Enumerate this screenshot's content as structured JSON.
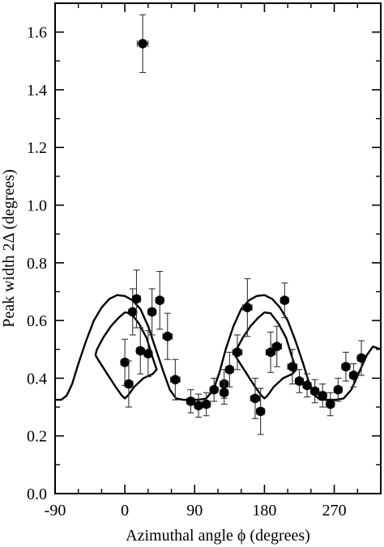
{
  "chart_data": {
    "type": "scatter",
    "xlabel": "Azimuthal angle ϕ (degrees)",
    "ylabel": "Peak width 2Δ (degrees)",
    "xlim": [
      -90,
      330
    ],
    "ylim": [
      0.0,
      1.7
    ],
    "x_ticks": [
      -90,
      0,
      90,
      180,
      270
    ],
    "x_tick_labels": [
      "-90",
      "0",
      "90",
      "180",
      "270"
    ],
    "y_ticks": [
      0.0,
      0.2,
      0.4,
      0.6,
      0.8,
      1.0,
      1.2,
      1.4,
      1.6
    ],
    "y_tick_labels": [
      "0.0",
      "0.2",
      "0.4",
      "0.6",
      "0.8",
      "1.0",
      "1.2",
      "1.4",
      "1.6"
    ],
    "grid": false,
    "series": [
      {
        "marker": "filled-circle",
        "color": "#000000",
        "points": [
          {
            "x": 0,
            "y": 0.455,
            "xerr": 5,
            "yerr": 0.08
          },
          {
            "x": 5,
            "y": 0.38,
            "xerr": 5,
            "yerr": 0.08
          },
          {
            "x": 10,
            "y": 0.63,
            "xerr": 5,
            "yerr": 0.08
          },
          {
            "x": 15,
            "y": 0.675,
            "xerr": 5,
            "yerr": 0.1
          },
          {
            "x": 20,
            "y": 0.495,
            "xerr": 5,
            "yerr": 0.08
          },
          {
            "x": 23,
            "y": 1.56,
            "xerr": 7,
            "yerr": 0.1
          },
          {
            "x": 30,
            "y": 0.485,
            "xerr": 5,
            "yerr": 0.08
          },
          {
            "x": 35,
            "y": 0.63,
            "xerr": 5,
            "yerr": 0.08
          },
          {
            "x": 45,
            "y": 0.67,
            "xerr": 5,
            "yerr": 0.1
          },
          {
            "x": 55,
            "y": 0.545,
            "xerr": 6,
            "yerr": 0.08
          },
          {
            "x": 65,
            "y": 0.395,
            "xerr": 6,
            "yerr": 0.07
          },
          {
            "x": 85,
            "y": 0.32,
            "xerr": 5,
            "yerr": 0.04
          },
          {
            "x": 95,
            "y": 0.305,
            "xerr": 5,
            "yerr": 0.04
          },
          {
            "x": 105,
            "y": 0.31,
            "xerr": 5,
            "yerr": 0.04
          },
          {
            "x": 115,
            "y": 0.36,
            "xerr": 5,
            "yerr": 0.04
          },
          {
            "x": 128,
            "y": 0.38,
            "xerr": 5,
            "yerr": 0.05
          },
          {
            "x": 128,
            "y": 0.35,
            "xerr": 5,
            "yerr": 0.04
          },
          {
            "x": 135,
            "y": 0.43,
            "xerr": 5,
            "yerr": 0.06
          },
          {
            "x": 145,
            "y": 0.49,
            "xerr": 6,
            "yerr": 0.06
          },
          {
            "x": 158,
            "y": 0.645,
            "xerr": 6,
            "yerr": 0.1
          },
          {
            "x": 168,
            "y": 0.33,
            "xerr": 6,
            "yerr": 0.07
          },
          {
            "x": 175,
            "y": 0.285,
            "xerr": 5,
            "yerr": 0.08
          },
          {
            "x": 188,
            "y": 0.49,
            "xerr": 6,
            "yerr": 0.07
          },
          {
            "x": 196,
            "y": 0.51,
            "xerr": 6,
            "yerr": 0.07
          },
          {
            "x": 206,
            "y": 0.67,
            "xerr": 5,
            "yerr": 0.06
          },
          {
            "x": 216,
            "y": 0.44,
            "xerr": 6,
            "yerr": 0.06
          },
          {
            "x": 225,
            "y": 0.39,
            "xerr": 5,
            "yerr": 0.04
          },
          {
            "x": 235,
            "y": 0.375,
            "xerr": 5,
            "yerr": 0.04
          },
          {
            "x": 245,
            "y": 0.355,
            "xerr": 5,
            "yerr": 0.04
          },
          {
            "x": 255,
            "y": 0.34,
            "xerr": 5,
            "yerr": 0.04
          },
          {
            "x": 265,
            "y": 0.31,
            "xerr": 5,
            "yerr": 0.04
          },
          {
            "x": 275,
            "y": 0.36,
            "xerr": 5,
            "yerr": 0.04
          },
          {
            "x": 285,
            "y": 0.44,
            "xerr": 5,
            "yerr": 0.05
          },
          {
            "x": 295,
            "y": 0.41,
            "xerr": 5,
            "yerr": 0.04
          },
          {
            "x": 305,
            "y": 0.47,
            "xerr": 5,
            "yerr": 0.06
          }
        ]
      }
    ],
    "curves": [
      {
        "style": "solid",
        "color": "#000000",
        "points": [
          [
            -90,
            0.325
          ],
          [
            -82,
            0.325
          ],
          [
            -75,
            0.34
          ],
          [
            -68,
            0.38
          ],
          [
            -60,
            0.45
          ],
          [
            -50,
            0.53
          ],
          [
            -40,
            0.6
          ],
          [
            -30,
            0.645
          ],
          [
            -20,
            0.675
          ],
          [
            -10,
            0.688
          ],
          [
            0,
            0.685
          ],
          [
            10,
            0.67
          ],
          [
            20,
            0.64
          ],
          [
            30,
            0.58
          ],
          [
            40,
            0.5
          ],
          [
            50,
            0.42
          ],
          [
            58,
            0.36
          ],
          [
            66,
            0.33
          ],
          [
            75,
            0.325
          ],
          [
            85,
            0.325
          ],
          [
            95,
            0.325
          ],
          [
            105,
            0.33
          ],
          [
            114,
            0.36
          ],
          [
            122,
            0.42
          ],
          [
            130,
            0.5
          ],
          [
            140,
            0.58
          ],
          [
            150,
            0.64
          ],
          [
            160,
            0.67
          ],
          [
            170,
            0.685
          ],
          [
            180,
            0.688
          ],
          [
            190,
            0.675
          ],
          [
            200,
            0.645
          ],
          [
            210,
            0.6
          ],
          [
            220,
            0.53
          ],
          [
            230,
            0.45
          ],
          [
            238,
            0.38
          ],
          [
            245,
            0.34
          ],
          [
            252,
            0.325
          ],
          [
            262,
            0.325
          ],
          [
            272,
            0.325
          ],
          [
            282,
            0.33
          ],
          [
            292,
            0.36
          ],
          [
            302,
            0.42
          ],
          [
            312,
            0.48
          ],
          [
            320,
            0.51
          ],
          [
            330,
            0.5
          ]
        ]
      },
      {
        "style": "solid",
        "color": "#000000",
        "points": [
          [
            -38,
            0.48
          ],
          [
            -36,
            0.5
          ],
          [
            -28,
            0.54
          ],
          [
            -18,
            0.58
          ],
          [
            -8,
            0.61
          ],
          [
            0,
            0.628
          ],
          [
            8,
            0.625
          ],
          [
            18,
            0.59
          ],
          [
            28,
            0.54
          ],
          [
            36,
            0.47
          ],
          [
            41,
            0.43
          ],
          [
            36,
            0.415
          ],
          [
            24,
            0.4
          ],
          [
            12,
            0.37
          ],
          [
            4,
            0.34
          ],
          [
            0,
            0.33
          ],
          [
            -4,
            0.34
          ],
          [
            -12,
            0.37
          ],
          [
            -24,
            0.42
          ],
          [
            -34,
            0.462
          ],
          [
            -38,
            0.48
          ]
        ]
      },
      {
        "style": "solid",
        "color": "#000000",
        "points": [
          [
            142,
            0.48
          ],
          [
            144,
            0.5
          ],
          [
            152,
            0.54
          ],
          [
            162,
            0.58
          ],
          [
            172,
            0.61
          ],
          [
            180,
            0.628
          ],
          [
            188,
            0.625
          ],
          [
            198,
            0.59
          ],
          [
            208,
            0.54
          ],
          [
            216,
            0.47
          ],
          [
            221,
            0.43
          ],
          [
            216,
            0.415
          ],
          [
            204,
            0.4
          ],
          [
            192,
            0.37
          ],
          [
            184,
            0.34
          ],
          [
            180,
            0.33
          ],
          [
            176,
            0.34
          ],
          [
            168,
            0.37
          ],
          [
            156,
            0.42
          ],
          [
            146,
            0.462
          ],
          [
            142,
            0.48
          ]
        ]
      }
    ]
  }
}
